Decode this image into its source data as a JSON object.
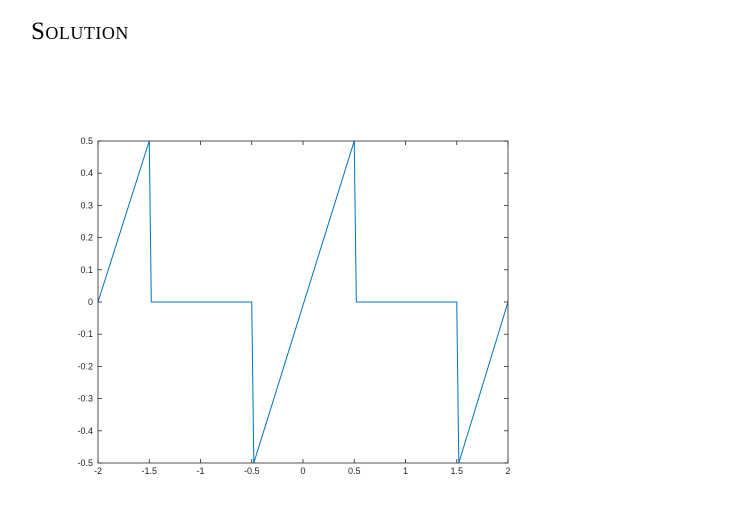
{
  "heading": "Solution",
  "chart_data": {
    "type": "line",
    "title": "",
    "xlabel": "",
    "ylabel": "",
    "xlim": [
      -2,
      2
    ],
    "ylim": [
      -0.5,
      0.5
    ],
    "grid": false,
    "line_color": "#0072BD",
    "xticks": [
      -2,
      -1.5,
      -1,
      -0.5,
      0,
      0.5,
      1,
      1.5,
      2
    ],
    "xtick_labels": [
      "-2",
      "-1.5",
      "-1",
      "-0.5",
      "0",
      "0.5",
      "1",
      "1.5",
      "2"
    ],
    "yticks": [
      0.5,
      0.4,
      0.3,
      0.2,
      0.1,
      0,
      -0.1,
      -0.2,
      -0.3,
      -0.4,
      -0.5
    ],
    "ytick_labels": [
      "0.5",
      "0.4",
      "0.3",
      "0.2",
      "0.1",
      "0",
      "-0.1",
      "-0.2",
      "-0.3",
      "-0.4",
      "-0.5"
    ],
    "series": [
      {
        "x": [
          -2,
          -1.5,
          -1.48,
          -0.5,
          -0.48,
          0.5,
          0.52,
          1.5,
          1.52,
          2
        ],
        "y": [
          0,
          0.5,
          0,
          0,
          -0.5,
          0.5,
          0,
          0,
          -0.5,
          0
        ]
      }
    ]
  }
}
